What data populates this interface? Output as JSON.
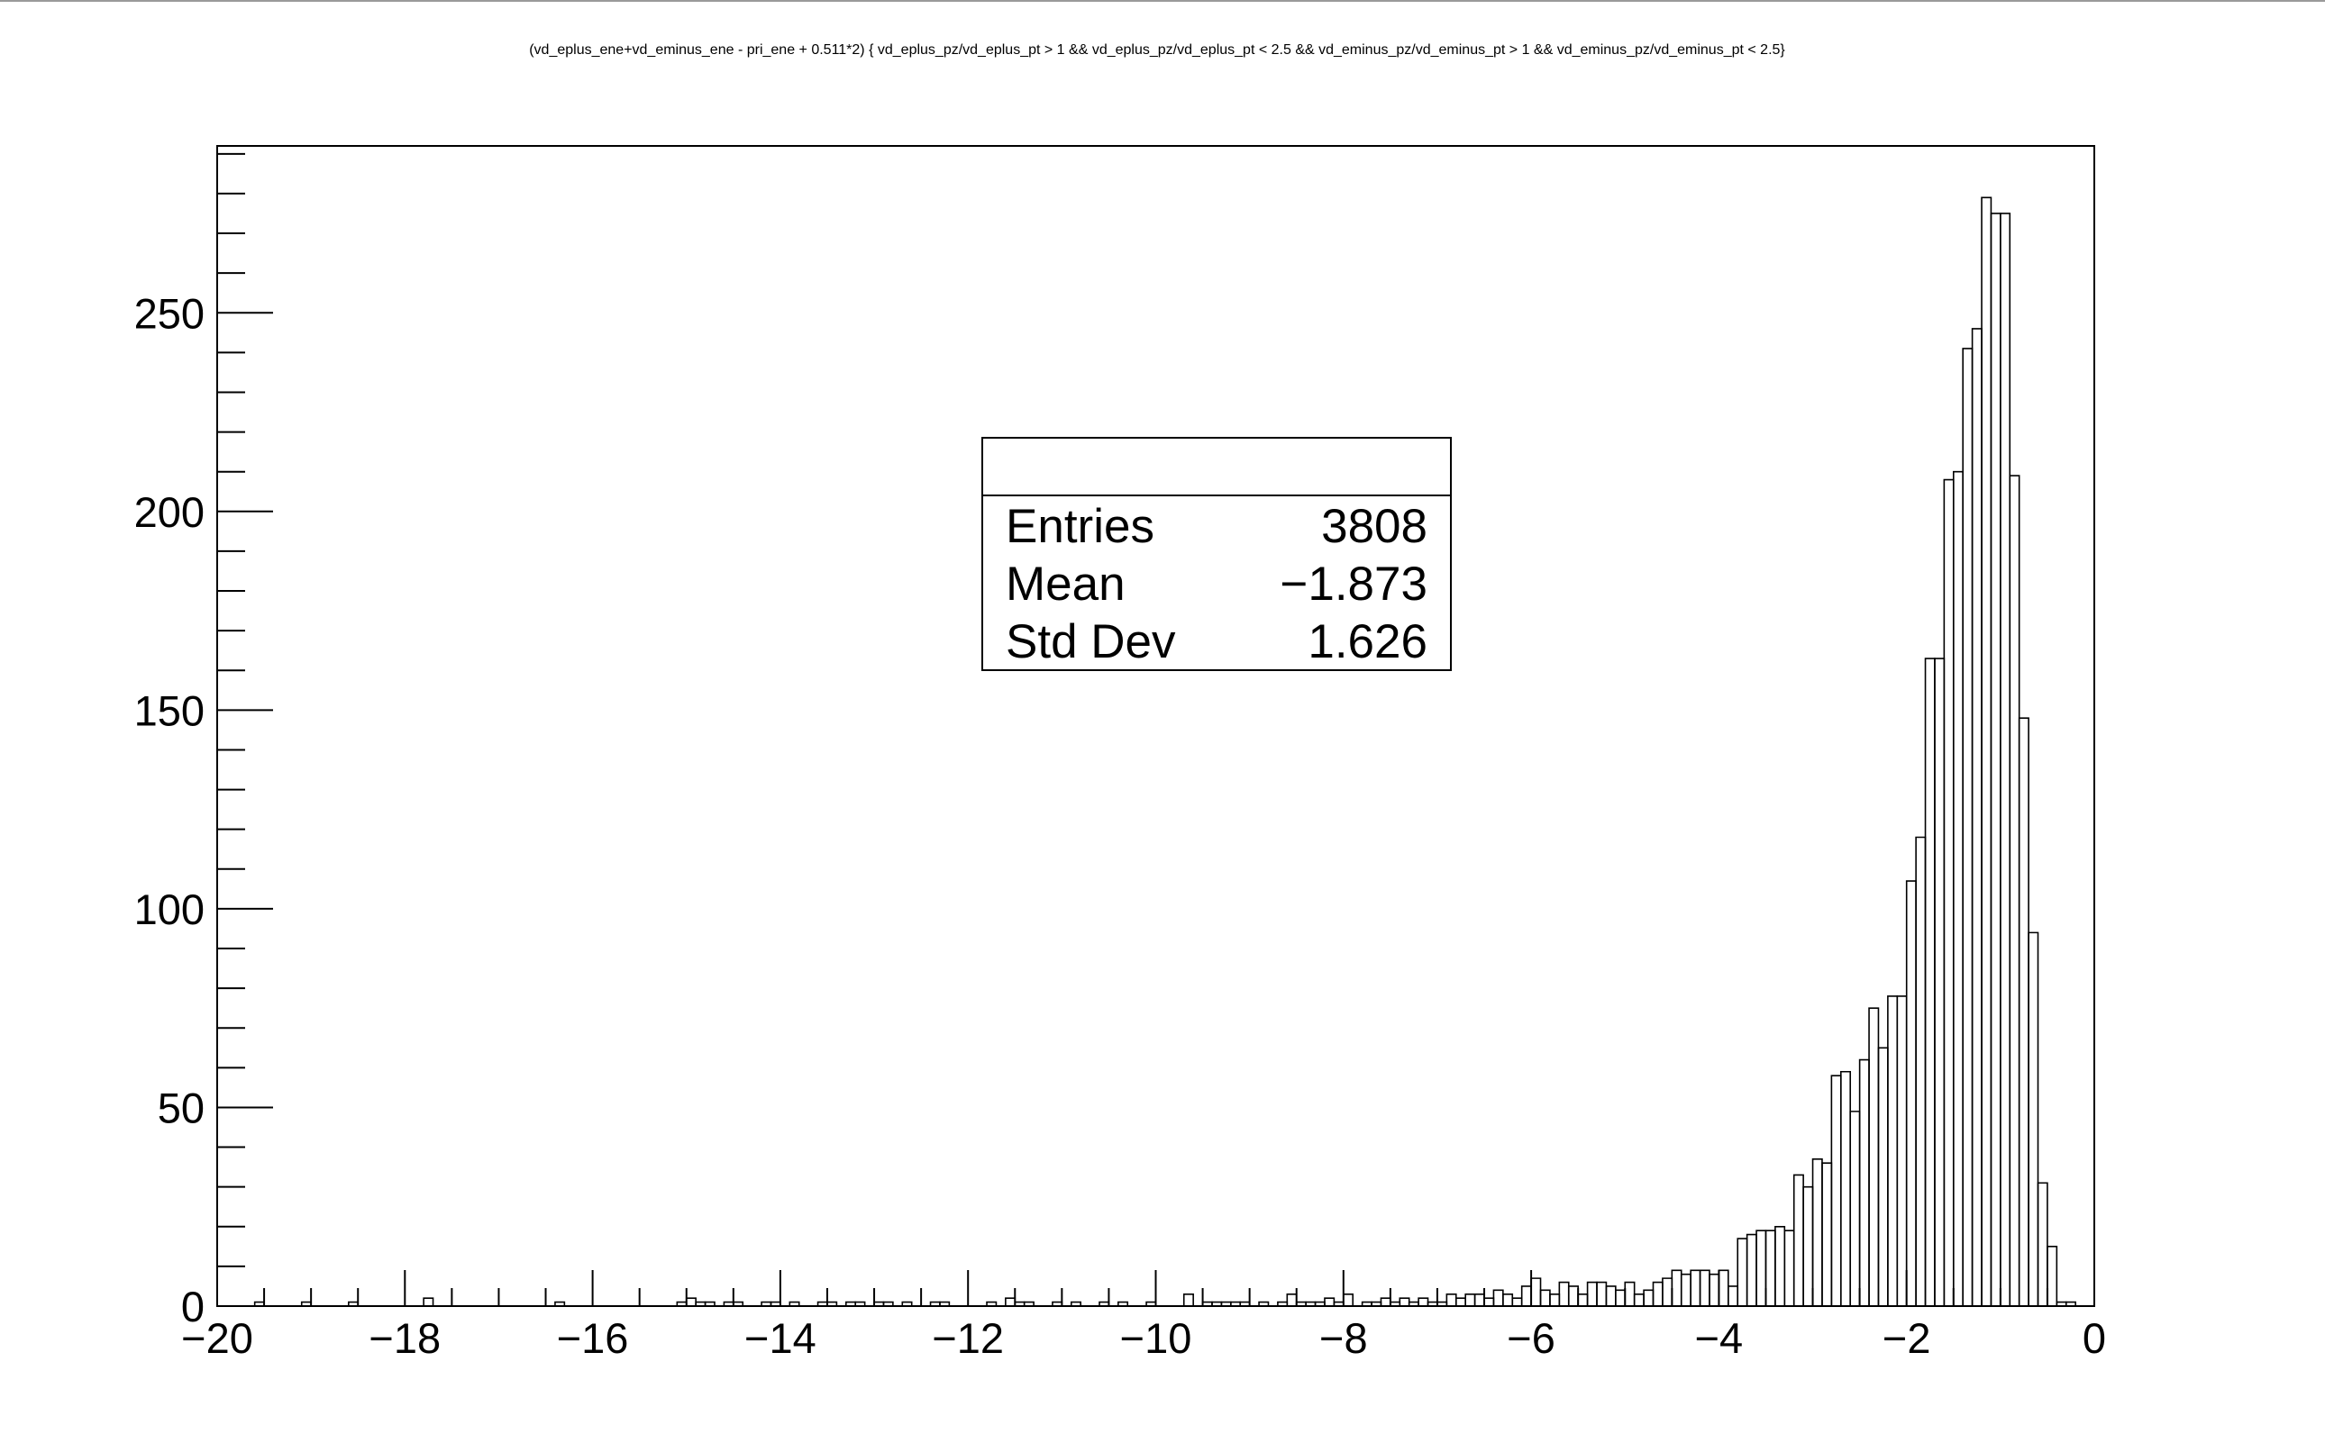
{
  "chart_data": {
    "type": "bar",
    "title": "(vd_eplus_ene+vd_eminus_ene - pri_ene + 0.511*2) { vd_eplus_pz/vd_eplus_pt > 1 &&  vd_eplus_pz/vd_eplus_pt < 2.5 && vd_eminus_pz/vd_eminus_pt > 1 && vd_eminus_pz/vd_eminus_pt < 2.5}",
    "xlabel": "",
    "ylabel": "",
    "xlim": [
      -20,
      0
    ],
    "ylim": [
      0,
      292
    ],
    "grid": false,
    "bin_width": 0.1,
    "x_ticks": [
      "−20",
      "−18",
      "−16",
      "−14",
      "−12",
      "−10",
      "−8",
      "−6",
      "−4",
      "−2",
      "0"
    ],
    "x_tick_values": [
      -20,
      -18,
      -16,
      -14,
      -12,
      -10,
      -8,
      -6,
      -4,
      -2,
      0
    ],
    "y_ticks": [
      "0",
      "50",
      "100",
      "150",
      "200",
      "250"
    ],
    "y_tick_values": [
      0,
      50,
      100,
      150,
      200,
      250
    ],
    "bins": [
      [
        -19.6,
        1
      ],
      [
        -19.1,
        1
      ],
      [
        -18.6,
        1
      ],
      [
        -17.8,
        2
      ],
      [
        -16.4,
        1
      ],
      [
        -15.1,
        1
      ],
      [
        -15.0,
        2
      ],
      [
        -14.9,
        1
      ],
      [
        -14.8,
        1
      ],
      [
        -14.6,
        1
      ],
      [
        -14.5,
        1
      ],
      [
        -14.2,
        1
      ],
      [
        -14.1,
        1
      ],
      [
        -13.9,
        1
      ],
      [
        -13.6,
        1
      ],
      [
        -13.5,
        1
      ],
      [
        -13.3,
        1
      ],
      [
        -13.2,
        1
      ],
      [
        -13.0,
        1
      ],
      [
        -12.9,
        1
      ],
      [
        -12.7,
        1
      ],
      [
        -12.4,
        1
      ],
      [
        -12.3,
        1
      ],
      [
        -11.8,
        1
      ],
      [
        -11.6,
        2
      ],
      [
        -11.5,
        1
      ],
      [
        -11.4,
        1
      ],
      [
        -11.1,
        1
      ],
      [
        -10.9,
        1
      ],
      [
        -10.6,
        1
      ],
      [
        -10.4,
        1
      ],
      [
        -10.1,
        1
      ],
      [
        -9.7,
        3
      ],
      [
        -9.5,
        1
      ],
      [
        -9.4,
        1
      ],
      [
        -9.3,
        1
      ],
      [
        -9.2,
        1
      ],
      [
        -9.1,
        1
      ],
      [
        -8.9,
        1
      ],
      [
        -8.7,
        1
      ],
      [
        -8.6,
        3
      ],
      [
        -8.5,
        1
      ],
      [
        -8.4,
        1
      ],
      [
        -8.3,
        1
      ],
      [
        -8.2,
        2
      ],
      [
        -8.1,
        1
      ],
      [
        -8.0,
        3
      ],
      [
        -7.8,
        1
      ],
      [
        -7.7,
        1
      ],
      [
        -7.6,
        2
      ],
      [
        -7.5,
        1
      ],
      [
        -7.4,
        2
      ],
      [
        -7.3,
        1
      ],
      [
        -7.2,
        2
      ],
      [
        -7.1,
        1
      ],
      [
        -7.0,
        1
      ],
      [
        -6.9,
        3
      ],
      [
        -6.8,
        2
      ],
      [
        -6.7,
        3
      ],
      [
        -6.6,
        3
      ],
      [
        -6.5,
        2
      ],
      [
        -6.4,
        4
      ],
      [
        -6.3,
        3
      ],
      [
        -6.2,
        2
      ],
      [
        -6.1,
        5
      ],
      [
        -6.0,
        7
      ],
      [
        -5.9,
        4
      ],
      [
        -5.8,
        3
      ],
      [
        -5.7,
        6
      ],
      [
        -5.6,
        5
      ],
      [
        -5.5,
        3
      ],
      [
        -5.4,
        6
      ],
      [
        -5.3,
        6
      ],
      [
        -5.2,
        5
      ],
      [
        -5.1,
        4
      ],
      [
        -5.0,
        6
      ],
      [
        -4.9,
        3
      ],
      [
        -4.8,
        4
      ],
      [
        -4.7,
        6
      ],
      [
        -4.6,
        7
      ],
      [
        -4.5,
        9
      ],
      [
        -4.4,
        8
      ],
      [
        -4.3,
        9
      ],
      [
        -4.2,
        9
      ],
      [
        -4.1,
        8
      ],
      [
        -4.0,
        9
      ],
      [
        -3.9,
        5
      ],
      [
        -3.8,
        17
      ],
      [
        -3.7,
        18
      ],
      [
        -3.6,
        19
      ],
      [
        -3.5,
        19
      ],
      [
        -3.4,
        20
      ],
      [
        -3.3,
        19
      ],
      [
        -3.2,
        33
      ],
      [
        -3.1,
        30
      ],
      [
        -3.0,
        37
      ],
      [
        -2.9,
        36
      ],
      [
        -2.8,
        58
      ],
      [
        -2.7,
        59
      ],
      [
        -2.6,
        49
      ],
      [
        -2.5,
        62
      ],
      [
        -2.4,
        75
      ],
      [
        -2.3,
        65
      ],
      [
        -2.2,
        78
      ],
      [
        -2.1,
        78
      ],
      [
        -2.0,
        107
      ],
      [
        -1.9,
        118
      ],
      [
        -1.8,
        163
      ],
      [
        -1.7,
        163
      ],
      [
        -1.6,
        208
      ],
      [
        -1.5,
        210
      ],
      [
        -1.4,
        241
      ],
      [
        -1.3,
        246
      ],
      [
        -1.2,
        279
      ],
      [
        -1.1,
        275
      ],
      [
        -1.0,
        275
      ],
      [
        -0.9,
        209
      ],
      [
        -0.8,
        148
      ],
      [
        -0.7,
        94
      ],
      [
        -0.6,
        31
      ],
      [
        -0.5,
        15
      ],
      [
        -0.4,
        1
      ],
      [
        -0.3,
        1
      ]
    ]
  },
  "stats_box": {
    "rows": [
      {
        "label": "Entries",
        "value": "3808"
      },
      {
        "label": "Mean",
        "value": "−1.873"
      },
      {
        "label": "Std Dev",
        "value": "1.626"
      }
    ]
  },
  "colors": {
    "line": "#000000",
    "background": "#ffffff",
    "window_border": "#9a9a9a"
  }
}
